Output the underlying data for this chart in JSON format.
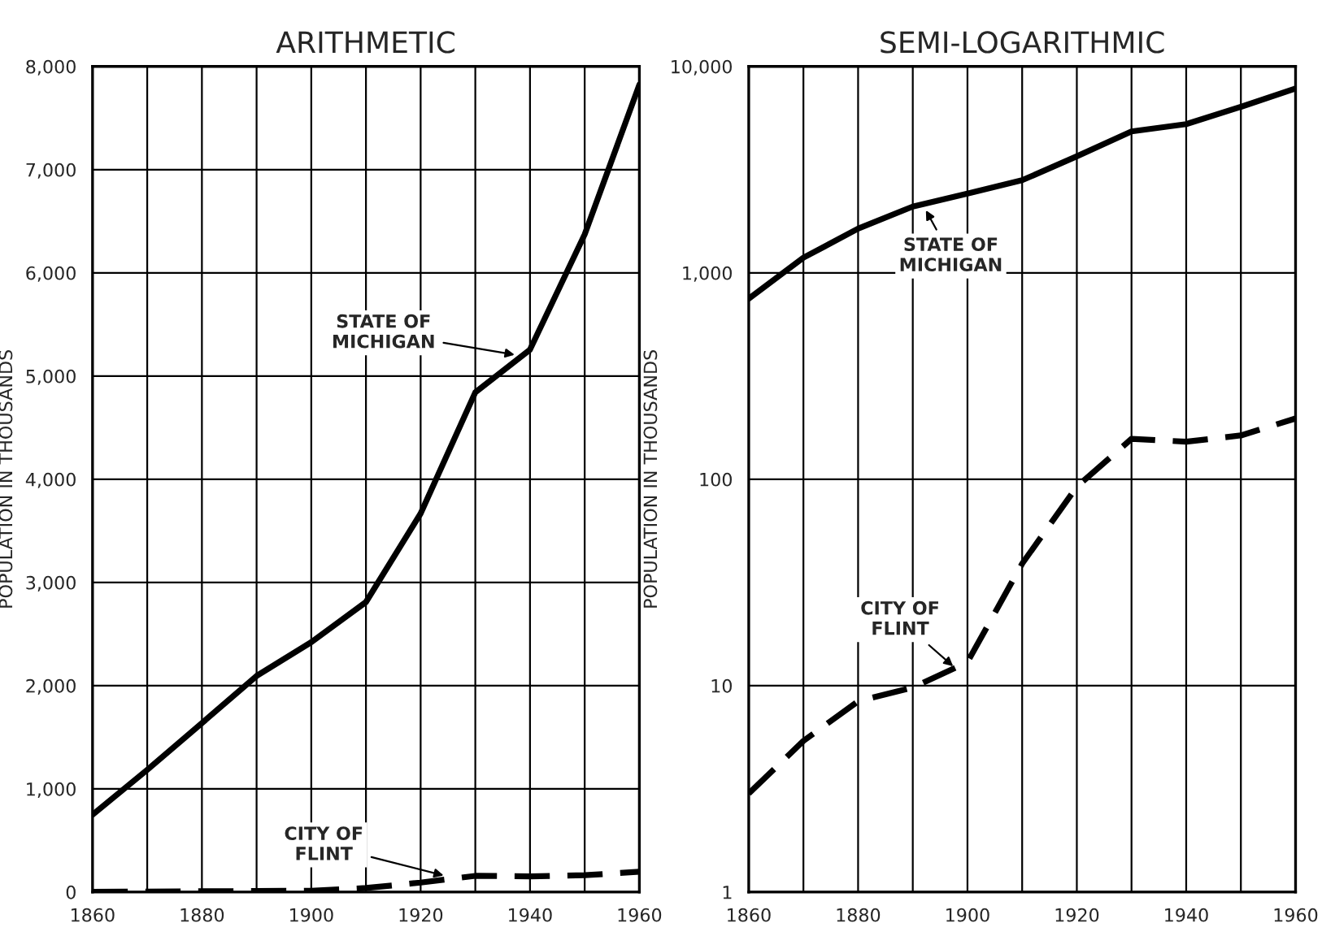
{
  "chart_data": [
    {
      "type": "line",
      "title": "ARITHMETIC",
      "ylabel": "POPULATION IN THOUSANDS",
      "x": [
        1860,
        1870,
        1880,
        1890,
        1900,
        1910,
        1920,
        1930,
        1940,
        1950,
        1960
      ],
      "series": [
        {
          "color": "#000000",
          "line_style": "solid",
          "values": [
            749,
            1184,
            1637,
            2094,
            2421,
            2810,
            3668,
            4842,
            5256,
            6372,
            7823
          ]
        },
        {
          "color": "#000000",
          "line_style": "dashed",
          "values": [
            3,
            5,
            8,
            10,
            13,
            39,
            92,
            157,
            152,
            163,
            197
          ]
        }
      ],
      "xlim": [
        1860,
        1960
      ],
      "xticks": [
        1860,
        {
          "value": 1870,
          "label": null
        },
        1880,
        {
          "value": 1890,
          "label": null
        },
        1900,
        {
          "value": 1910,
          "label": null
        },
        1920,
        {
          "value": 1930,
          "label": null
        },
        1940,
        {
          "value": 1950,
          "label": null
        },
        1960
      ],
      "ylim": [
        0,
        8000
      ],
      "yticks": [
        0,
        {
          "value": 1000,
          "label": "1,000"
        },
        {
          "value": 2000,
          "label": "2,000"
        },
        {
          "value": 3000,
          "label": "3,000"
        },
        {
          "value": 4000,
          "label": "4,000"
        },
        {
          "value": 5000,
          "label": "5,000"
        },
        {
          "value": 6000,
          "label": "6,000"
        },
        {
          "value": 7000,
          "label": "7,000"
        },
        {
          "value": 8000,
          "label": "8,000"
        }
      ],
      "grid": true,
      "marker": "none",
      "annotations": [
        {
          "text": "STATE OF\nMICHIGAN",
          "x": 1938,
          "y": 5200
        },
        {
          "text": "CITY OF\nFLINT",
          "x": 1925,
          "y": 150
        }
      ]
    },
    {
      "type": "line",
      "title": "SEMI-LOGARITHMIC",
      "ylabel": "POPULATION IN THOUSANDS",
      "log": "y",
      "x": [
        1860,
        1870,
        1880,
        1890,
        1900,
        1910,
        1920,
        1930,
        1940,
        1950,
        1960
      ],
      "series": [
        {
          "color": "#000000",
          "line_style": "solid",
          "values": [
            749,
            1184,
            1637,
            2094,
            2421,
            2810,
            3668,
            4842,
            5256,
            6372,
            7823
          ]
        },
        {
          "color": "#000000",
          "line_style": "dashed",
          "values": [
            3,
            5.4,
            8.4,
            9.8,
            13,
            39,
            92,
            157,
            152,
            163,
            197
          ]
        }
      ],
      "xlim": [
        1860,
        1960
      ],
      "xticks": [
        1860,
        {
          "value": 1870,
          "label": null
        },
        1880,
        {
          "value": 1890,
          "label": null
        },
        1900,
        {
          "value": 1910,
          "label": null
        },
        1920,
        {
          "value": 1930,
          "label": null
        },
        1940,
        {
          "value": 1950,
          "label": null
        },
        1960
      ],
      "ylim": [
        1,
        10000
      ],
      "yticks": [
        1,
        10,
        100,
        {
          "value": 1000,
          "label": "1,000"
        },
        {
          "value": 10000,
          "label": "10,000"
        }
      ],
      "grid": true,
      "marker": "none",
      "annotations": [
        {
          "text": "STATE OF\nMICHIGAN",
          "x": 1892,
          "y": 2100
        },
        {
          "text": "CITY OF\nFLINT",
          "x": 1898,
          "y": 12
        }
      ]
    }
  ]
}
